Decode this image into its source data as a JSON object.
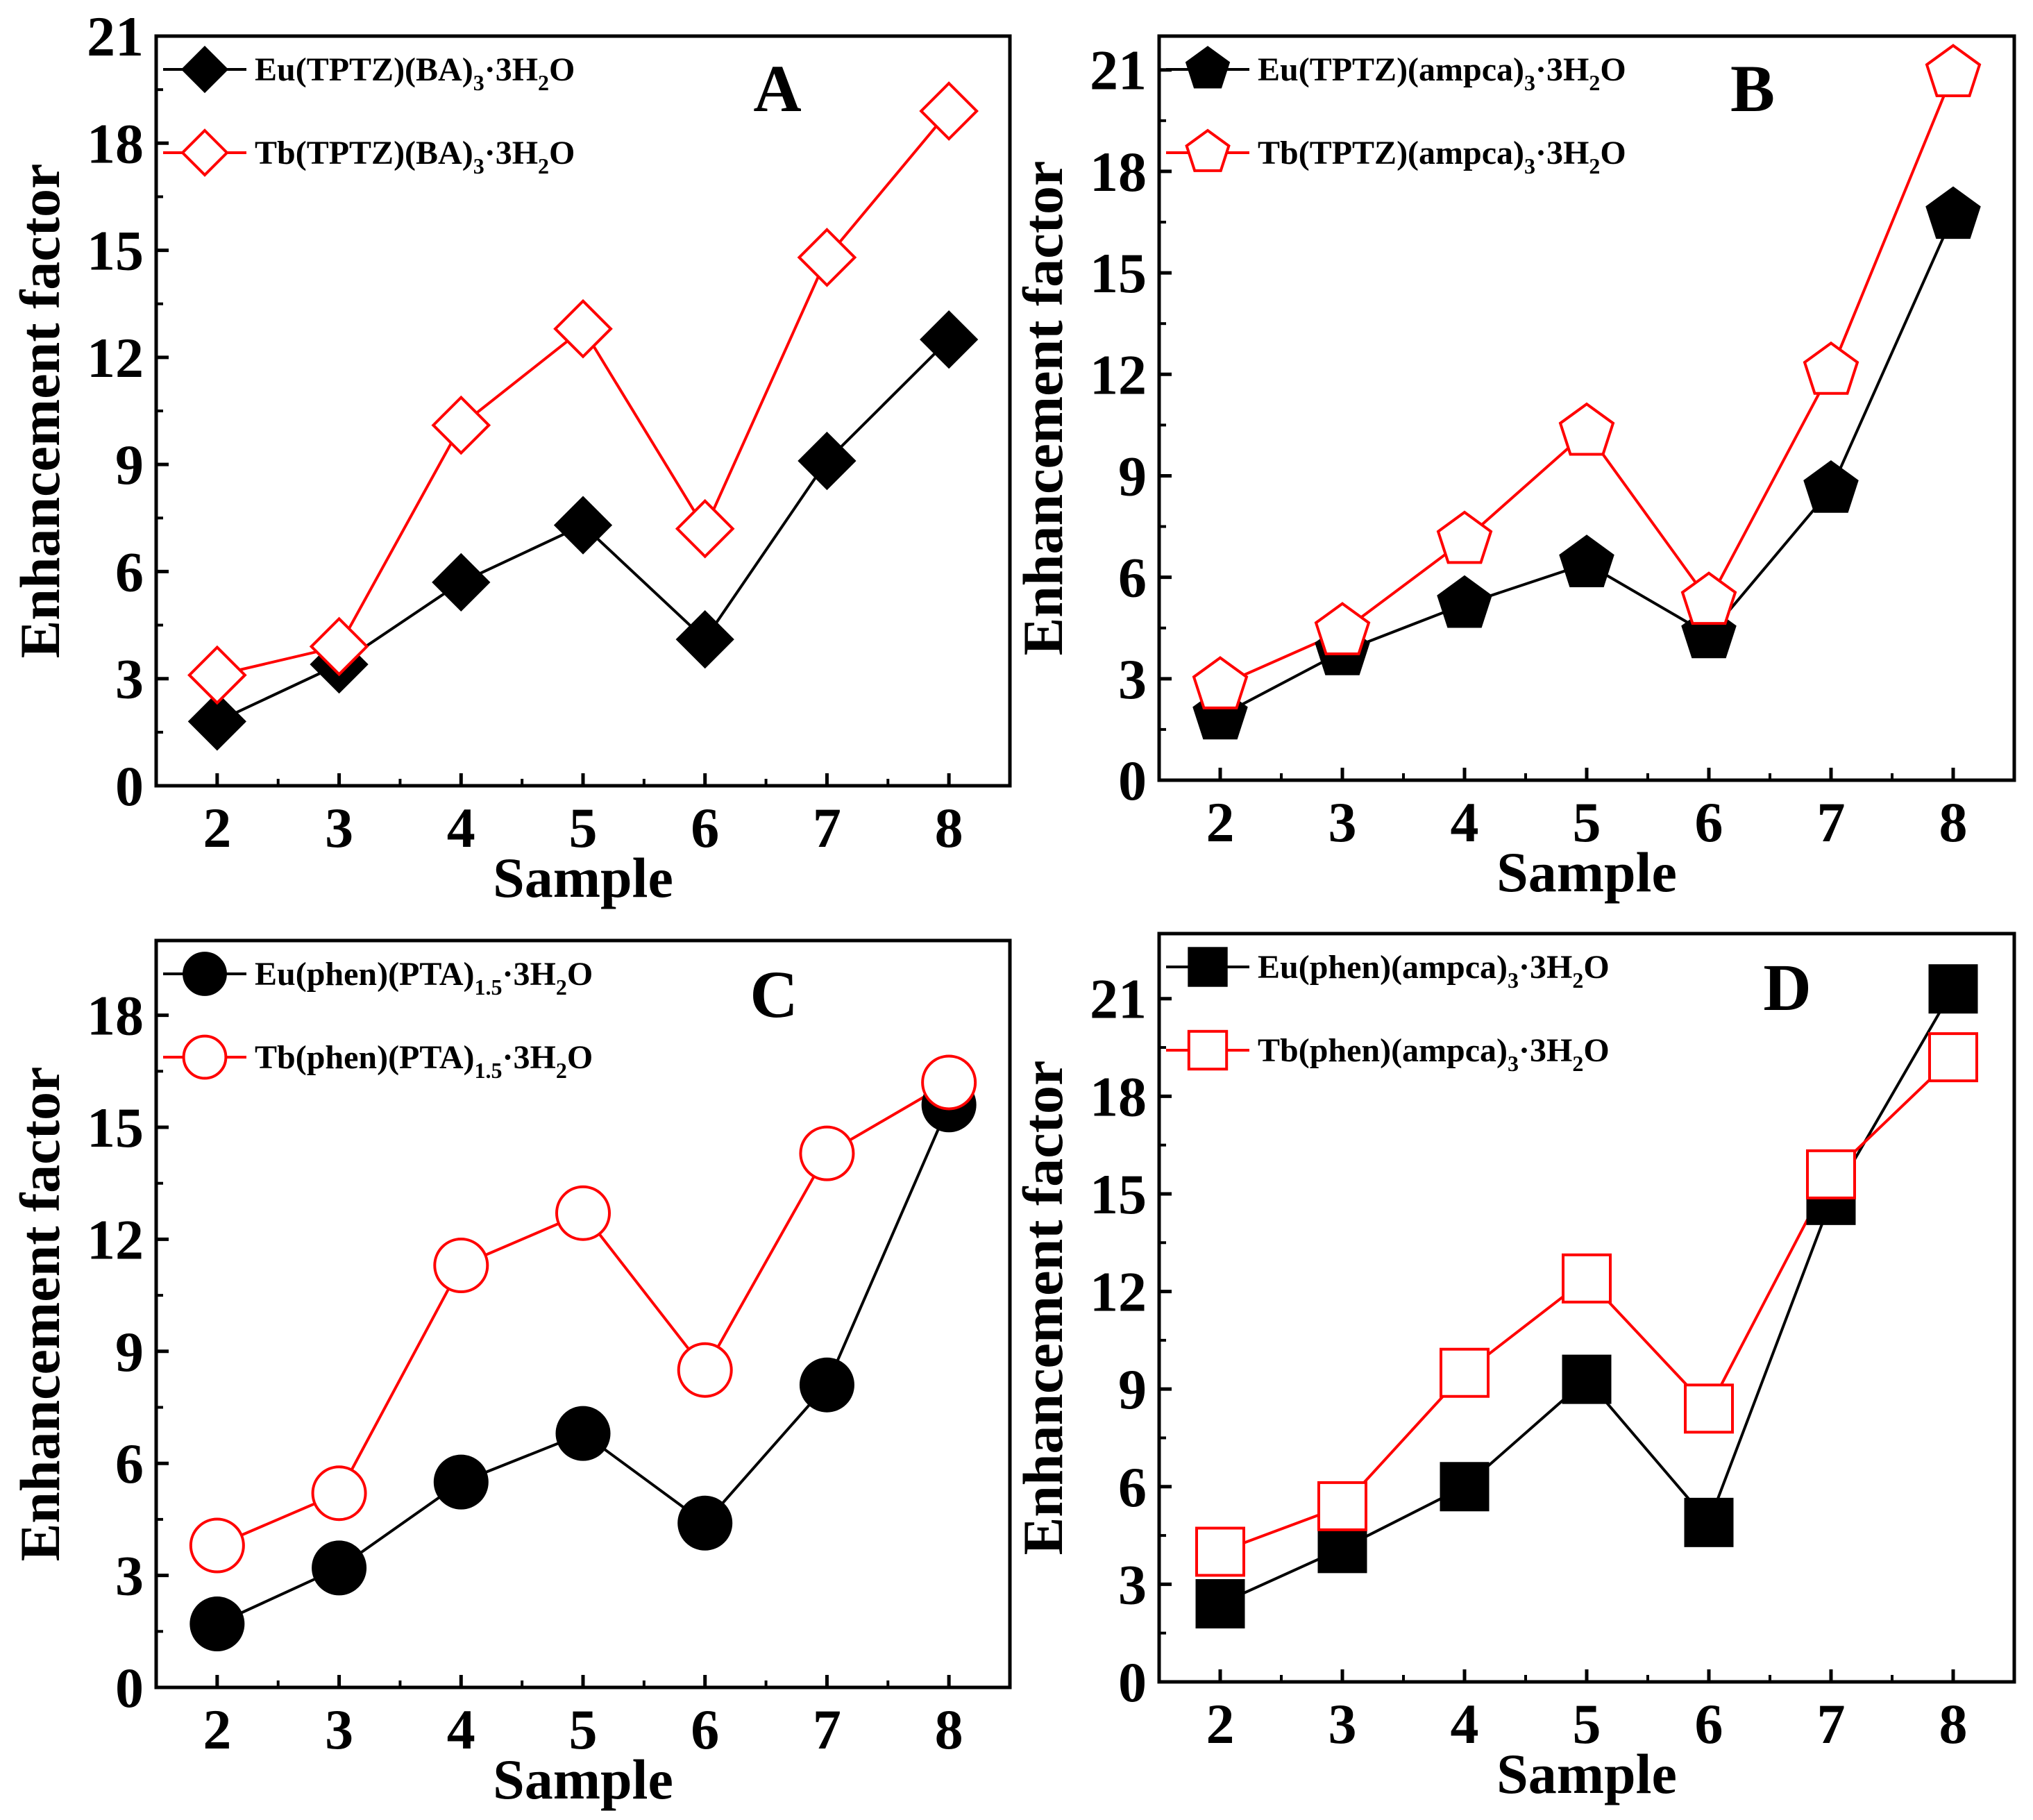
{
  "chart_data": [
    {
      "type": "line",
      "panel": "A",
      "xlabel": "Sample",
      "ylabel": "Enhancement factor",
      "x": [
        2,
        3,
        4,
        5,
        6,
        7,
        8
      ],
      "xlim": [
        1.5,
        8.5
      ],
      "ylim": [
        0,
        21
      ],
      "yticks": [
        0,
        3,
        6,
        9,
        12,
        15,
        18,
        21
      ],
      "marker_shape": "diamond",
      "series": [
        {
          "name": "Eu(TPTZ)(BA)3·3H2O",
          "label_parts": [
            "Eu(TPTZ)(BA)",
            "3",
            "·3H",
            "2",
            "O"
          ],
          "values": [
            1.8,
            3.4,
            5.7,
            7.3,
            4.1,
            9.1,
            12.5
          ],
          "color": "#000000",
          "filled": true
        },
        {
          "name": "Tb(TPTZ)(BA)3·3H2O",
          "label_parts": [
            "Tb(TPTZ)(BA)",
            "3",
            "·3H",
            "2",
            "O"
          ],
          "values": [
            3.1,
            3.9,
            10.1,
            12.8,
            7.2,
            14.8,
            18.9
          ],
          "color": "#ff0000",
          "filled": false
        }
      ]
    },
    {
      "type": "line",
      "panel": "B",
      "xlabel": "Sample",
      "ylabel": "Enhancement factor",
      "x": [
        2,
        3,
        4,
        5,
        6,
        7,
        8
      ],
      "xlim": [
        1.5,
        8.5
      ],
      "ylim": [
        0,
        22
      ],
      "yticks": [
        0,
        3,
        6,
        9,
        12,
        15,
        18,
        21
      ],
      "marker_shape": "pentagon",
      "series": [
        {
          "name": "Eu(TPTZ)(ampca)3·3H2O",
          "label_parts": [
            "Eu(TPTZ)(ampca)",
            "3",
            "·3H",
            "2",
            "O"
          ],
          "values": [
            1.9,
            3.8,
            5.2,
            6.4,
            4.3,
            8.6,
            16.7
          ],
          "color": "#000000",
          "filled": true
        },
        {
          "name": "Tb(TPTZ)(ampca)3·3H2O",
          "label_parts": [
            "Tb(TPTZ)(ampca)",
            "3",
            "·3H",
            "2",
            "O"
          ],
          "values": [
            2.8,
            4.4,
            7.1,
            10.3,
            5.3,
            12.1,
            20.9
          ],
          "color": "#ff0000",
          "filled": false
        }
      ]
    },
    {
      "type": "line",
      "panel": "C",
      "xlabel": "Sample",
      "ylabel": "Enhancement factor",
      "x": [
        2,
        3,
        4,
        5,
        6,
        7,
        8
      ],
      "xlim": [
        1.5,
        8.5
      ],
      "ylim": [
        0,
        20
      ],
      "yticks": [
        0,
        3,
        6,
        9,
        12,
        15,
        18
      ],
      "marker_shape": "circle",
      "series": [
        {
          "name": "Eu(phen)(PTA)1.5·3H2O",
          "label_parts": [
            "Eu(phen)(PTA)",
            "1.5",
            "·3H",
            "2",
            "O"
          ],
          "values": [
            1.7,
            3.2,
            5.5,
            6.8,
            4.4,
            8.1,
            15.6
          ],
          "color": "#000000",
          "filled": true
        },
        {
          "name": "Tb(phen)(PTA)1.5·3H2O",
          "label_parts": [
            "Tb(phen)(PTA)",
            "1.5",
            "·3H",
            "2",
            "O"
          ],
          "values": [
            3.8,
            5.2,
            11.3,
            12.7,
            8.5,
            14.3,
            16.2
          ],
          "color": "#ff0000",
          "filled": false
        }
      ]
    },
    {
      "type": "line",
      "panel": "D",
      "xlabel": "Sample",
      "ylabel": "Enhancement factor",
      "x": [
        2,
        3,
        4,
        5,
        6,
        7,
        8
      ],
      "xlim": [
        1.5,
        8.5
      ],
      "ylim": [
        0,
        23
      ],
      "yticks": [
        0,
        3,
        6,
        9,
        12,
        15,
        18,
        21
      ],
      "marker_shape": "square",
      "series": [
        {
          "name": "Eu(phen)(ampca)3·3H2O",
          "label_parts": [
            "Eu(phen)(ampca)",
            "3",
            "·3H",
            "2",
            "O"
          ],
          "values": [
            2.4,
            4.1,
            6.0,
            9.3,
            4.9,
            14.8,
            21.3
          ],
          "color": "#000000",
          "filled": true
        },
        {
          "name": "Tb(phen)(ampca)3·3H2O",
          "label_parts": [
            "Tb(phen)(ampca)",
            "3",
            "·3H",
            "2",
            "O"
          ],
          "values": [
            4.0,
            5.4,
            9.5,
            12.4,
            8.4,
            15.6,
            19.2
          ],
          "color": "#ff0000",
          "filled": false
        }
      ]
    }
  ]
}
